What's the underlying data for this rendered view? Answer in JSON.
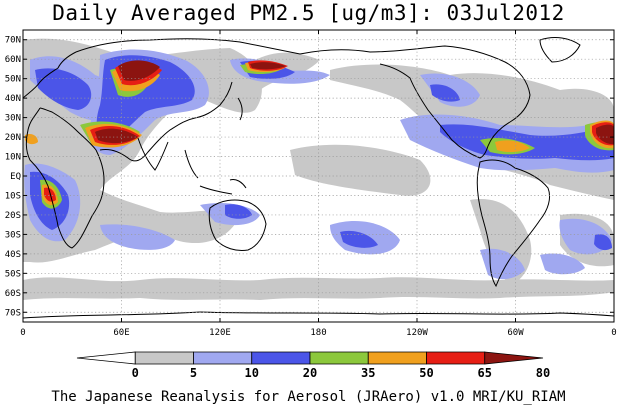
{
  "title": "Daily Averaged PM2.5 [ug/m3]: 03Jul2012",
  "credit": "The Japanese Reanalysis for Aerosol (JRAero) v1.0 MRI/KU_RIAM",
  "map": {
    "projection": "equirectangular",
    "lon_range": [
      0,
      360
    ],
    "lat_range": [
      -75,
      75
    ],
    "lat_labels": [
      "70N",
      "60N",
      "50N",
      "40N",
      "30N",
      "20N",
      "10N",
      "EQ",
      "10S",
      "20S",
      "30S",
      "40S",
      "50S",
      "60S",
      "70S"
    ],
    "lat_values": [
      70,
      60,
      50,
      40,
      30,
      20,
      10,
      0,
      -10,
      -20,
      -30,
      -40,
      -50,
      -60,
      -70
    ],
    "lon_labels": [
      "0",
      "60E",
      "120E",
      "180",
      "120W",
      "60W",
      "0"
    ],
    "lon_values": [
      0,
      60,
      120,
      180,
      240,
      300,
      360
    ],
    "grid": true
  },
  "colorbar": {
    "levels": [
      "0",
      "5",
      "10",
      "20",
      "35",
      "50",
      "65",
      "80"
    ],
    "colors": [
      "#ffffff",
      "#c8c8c8",
      "#a0a8f0",
      "#4b55e8",
      "#8cc83c",
      "#f0a01e",
      "#e61e14",
      "#8c1410"
    ]
  },
  "colors": {
    "level_5": "#c8c8c8",
    "level_10": "#a0a8f0",
    "level_20": "#4b55e8",
    "level_35": "#8cc83c",
    "level_50": "#f0a01e",
    "level_65": "#e61e14",
    "level_80": "#8c1410"
  }
}
